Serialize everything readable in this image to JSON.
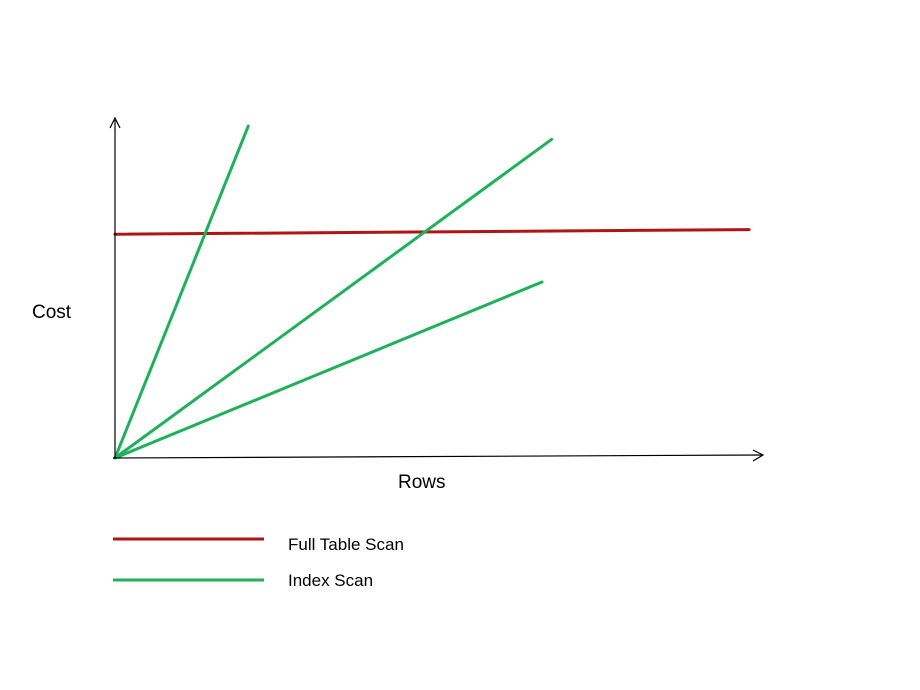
{
  "chart_data": {
    "type": "line",
    "xlabel": "Rows",
    "ylabel": "Cost",
    "xlim": [
      0,
      100
    ],
    "ylim": [
      0,
      100
    ],
    "grid": false,
    "legend_position": "bottom-left",
    "series": [
      {
        "name": "Full Table Scan",
        "color": "#b01515",
        "x": [
          0,
          98
        ],
        "y": [
          67.4,
          68.8
        ]
      },
      {
        "name": "Index Scan",
        "color": "#1fb15a",
        "x": [
          0,
          20.6
        ],
        "y": [
          0,
          100
        ]
      },
      {
        "name": "Index Scan",
        "color": "#1fb15a",
        "x": [
          0,
          67.5
        ],
        "y": [
          0,
          96
        ]
      },
      {
        "name": "Index Scan",
        "color": "#1fb15a",
        "x": [
          0,
          66
        ],
        "y": [
          0,
          53
        ]
      }
    ],
    "legend": [
      {
        "label": "Full Table Scan",
        "color": "#b01515"
      },
      {
        "label": "Index Scan",
        "color": "#1fb15a"
      }
    ]
  }
}
